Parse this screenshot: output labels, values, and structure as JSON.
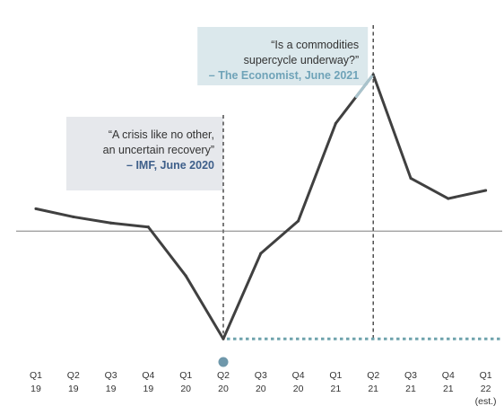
{
  "chart_data": {
    "type": "line",
    "categories": [
      {
        "q": "Q1",
        "y": "19"
      },
      {
        "q": "Q2",
        "y": "19"
      },
      {
        "q": "Q3",
        "y": "19"
      },
      {
        "q": "Q4",
        "y": "19"
      },
      {
        "q": "Q1",
        "y": "20"
      },
      {
        "q": "Q2",
        "y": "20"
      },
      {
        "q": "Q3",
        "y": "20"
      },
      {
        "q": "Q4",
        "y": "20"
      },
      {
        "q": "Q1",
        "y": "21"
      },
      {
        "q": "Q2",
        "y": "21"
      },
      {
        "q": "Q3",
        "y": "21"
      },
      {
        "q": "Q4",
        "y": "21"
      },
      {
        "q": "Q1",
        "y": "22",
        "note": "(est.)"
      }
    ],
    "values": [
      1.1,
      0.7,
      0.4,
      0.2,
      -2.2,
      -5.3,
      -1.1,
      0.5,
      5.3,
      7.7,
      2.6,
      1.6,
      2.0
    ],
    "ylim": [
      -5.6,
      9.6
    ],
    "baseline": 0,
    "floor_value": -5.3,
    "colors": {
      "line": "#404040",
      "baseline": "#7f7f7f",
      "dashed": "#404040",
      "floor": "#6fa3ad",
      "marker": "#6f98ab",
      "highlight": "#a9c3cc",
      "box_left": "#e6e8ec",
      "box_right": "#dbe8ec",
      "source_left": "#3e5f8a",
      "source_right": "#6fa3b8"
    },
    "annotations": [
      {
        "at_index": 5,
        "lines": [
          "“A crisis like no other,",
          "an uncertain recovery”"
        ],
        "source": "– IMF, June 2020"
      },
      {
        "at_index": 9,
        "lines": [
          "“Is a commodities",
          "supercycle underway?”"
        ],
        "source": "– The Economist, June 2021"
      }
    ]
  }
}
